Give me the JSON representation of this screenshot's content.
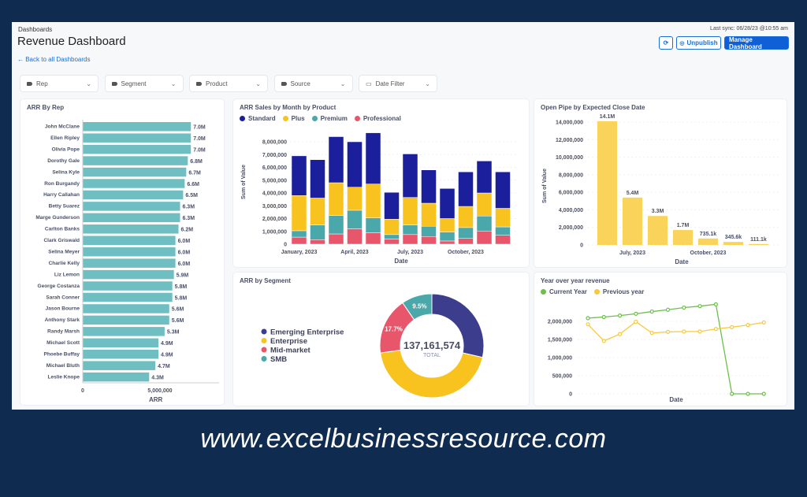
{
  "header": {
    "breadcrumb": "Dashboards",
    "title": "Revenue Dashboard",
    "back_link": "← Back to all Dashboards",
    "last_sync": "Last sync: 06/28/23 @10:55 am",
    "refresh_icon": "refresh-icon",
    "unpublish_label": "Unpublish",
    "unpublish_icon": "eye-slash-icon",
    "manage_label": "Manage Dashboard"
  },
  "filters": [
    {
      "label": "Rep",
      "icon": "tag-icon"
    },
    {
      "label": "Segment",
      "icon": "tag-icon"
    },
    {
      "label": "Product",
      "icon": "tag-icon"
    },
    {
      "label": "Source",
      "icon": "tag-icon"
    },
    {
      "label": "Date Filter",
      "icon": "calendar-icon"
    }
  ],
  "colors": {
    "accent": "#0f5fd6",
    "teal": "#6fbfc2",
    "standard": "#1c1f9c",
    "plus": "#f9c31f",
    "premium": "#4aa7aa",
    "professional": "#e8566b",
    "pipe": "#f9d35a",
    "current": "#6cc04a",
    "previous": "#f9c93a",
    "emerging": "#3c3d8c"
  },
  "watermark": "www.excelbusinessresource.com",
  "chart_data": [
    {
      "type": "bar",
      "orientation": "horizontal",
      "title": "ARR By Rep",
      "xlabel": "ARR",
      "xticks": [
        "0",
        "5,000,000"
      ],
      "xlim": [
        0,
        9000000
      ],
      "categories": [
        "John McClane",
        "Ellen Ripley",
        "Olivia Pope",
        "Dorothy Gale",
        "Selina Kyle",
        "Ron Burgandy",
        "Harry Callahan",
        "Betty Suarez",
        "Marge Gunderson",
        "Carlton Banks",
        "Clark Griswald",
        "Selina Meyer",
        "Charlie Kelly",
        "Liz Lemon",
        "George Costanza",
        "Sarah Conner",
        "Jason Bourne",
        "Anthony Stark",
        "Randy Marsh",
        "Michael Scott",
        "Phoebe Buffay",
        "Michael Bluth",
        "Leslie Knope"
      ],
      "values": [
        7.0,
        7.0,
        7.0,
        6.8,
        6.7,
        6.6,
        6.5,
        6.3,
        6.3,
        6.2,
        6.0,
        6.0,
        6.0,
        5.9,
        5.8,
        5.8,
        5.6,
        5.6,
        5.3,
        4.9,
        4.9,
        4.7,
        4.3
      ],
      "labels": [
        "7.0M",
        "7.0M",
        "7.0M",
        "6.8M",
        "6.7M",
        "6.6M",
        "6.5M",
        "6.3M",
        "6.3M",
        "6.2M",
        "6.0M",
        "6.0M",
        "6.0M",
        "5.9M",
        "5.8M",
        "5.8M",
        "5.6M",
        "5.6M",
        "5.3M",
        "4.9M",
        "4.9M",
        "4.7M",
        "4.3M"
      ]
    },
    {
      "type": "bar",
      "stacked": true,
      "title": "ARR Sales by Month by Product",
      "xlabel": "Date",
      "ylabel": "Sum of Value",
      "ylim": [
        0,
        8700000
      ],
      "yticks": [
        "0",
        "1,000,000",
        "2,000,000",
        "3,000,000",
        "4,000,000",
        "5,000,000",
        "6,000,000",
        "7,000,000",
        "8,000,000"
      ],
      "categories": [
        "Jan 2023",
        "Feb 2023",
        "Mar 2023",
        "Apr 2023",
        "May 2023",
        "Jun 2023",
        "Jul 2023",
        "Aug 2023",
        "Sep 2023",
        "Oct 2023",
        "Nov 2023",
        "Dec 2023"
      ],
      "xtick_labels": [
        {
          "index": 0,
          "label": "January, 2023"
        },
        {
          "index": 3,
          "label": "April, 2023"
        },
        {
          "index": 6,
          "label": "July, 2023"
        },
        {
          "index": 9,
          "label": "October, 2023"
        }
      ],
      "series": [
        {
          "name": "Professional",
          "values": [
            550000,
            350000,
            800000,
            1200000,
            900000,
            400000,
            750000,
            600000,
            250000,
            450000,
            1000000,
            700000
          ]
        },
        {
          "name": "Premium",
          "values": [
            500000,
            1150000,
            1450000,
            1450000,
            1150000,
            350000,
            750000,
            800000,
            700000,
            850000,
            1200000,
            650000
          ]
        },
        {
          "name": "Plus",
          "values": [
            2750000,
            2100000,
            2550000,
            1800000,
            2650000,
            1200000,
            2150000,
            1800000,
            1050000,
            1650000,
            1800000,
            1450000
          ]
        },
        {
          "name": "Standard",
          "values": [
            3100000,
            3000000,
            3600000,
            3550000,
            4000000,
            2100000,
            3400000,
            2600000,
            2350000,
            2700000,
            2500000,
            2850000
          ]
        }
      ],
      "legend": [
        "Standard",
        "Plus",
        "Premium",
        "Professional"
      ],
      "legend_position": "top-left"
    },
    {
      "type": "bar",
      "title": "Open Pipe by Expected Close Date",
      "xlabel": "Date",
      "ylabel": "Sum of Value",
      "ylim": [
        0,
        14500000
      ],
      "yticks": [
        "0",
        "2,000,000",
        "4,000,000",
        "6,000,000",
        "8,000,000",
        "10,000,000",
        "12,000,000",
        "14,000,000"
      ],
      "categories": [
        "Jun 2023",
        "Jul 2023",
        "Aug 2023",
        "Sep 2023",
        "Oct 2023",
        "Nov 2023",
        "Dec 2023"
      ],
      "xtick_labels": [
        {
          "index": 1,
          "label": "July, 2023"
        },
        {
          "index": 4,
          "label": "October, 2023"
        }
      ],
      "values": [
        14100000,
        5400000,
        3300000,
        1700000,
        735100,
        345600,
        111100
      ],
      "labels": [
        "14.1M",
        "5.4M",
        "3.3M",
        "1.7M",
        "735.1k",
        "345.6k",
        "111.1k"
      ]
    },
    {
      "type": "pie",
      "donut": true,
      "title": "ARR by Segment",
      "total": "137,161,574",
      "total_label": "TOTAL",
      "slices": [
        {
          "name": "Emerging Enterprise",
          "value": 28.6
        },
        {
          "name": "Enterprise",
          "value": 44.2
        },
        {
          "name": "Mid-market",
          "value": 17.7,
          "label": "17.7%"
        },
        {
          "name": "SMB",
          "value": 9.5,
          "label": "9.5%"
        }
      ],
      "legend_position": "left"
    },
    {
      "type": "line",
      "title": "Year over year revenue",
      "xlabel": "Date",
      "ylim": [
        0,
        2500000
      ],
      "yticks": [
        "0",
        "500,000",
        "1,000,000",
        "1,500,000",
        "2,000,000"
      ],
      "series": [
        {
          "name": "Current Year",
          "values": [
            2090000,
            2120000,
            2160000,
            2210000,
            2270000,
            2320000,
            2380000,
            2420000,
            2470000,
            0,
            0,
            0
          ]
        },
        {
          "name": "Previous year",
          "values": [
            1920000,
            1460000,
            1650000,
            1990000,
            1680000,
            1710000,
            1720000,
            1720000,
            1790000,
            1840000,
            1900000,
            1970000
          ]
        }
      ],
      "legend_position": "top-left"
    }
  ]
}
